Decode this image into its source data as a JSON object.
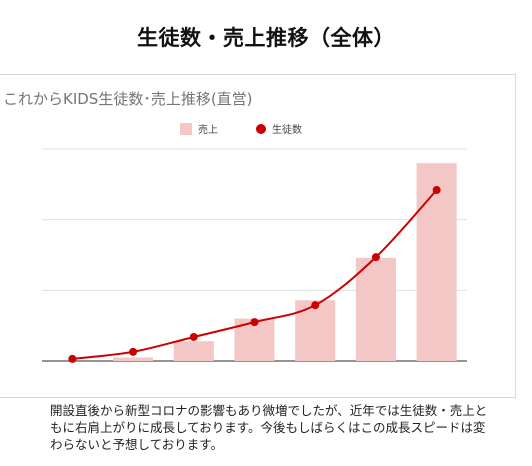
{
  "page": {
    "title": "生徒数・売上推移（全体）",
    "note": "開設直後から新型コロナの影響もあり微増でしたが、近年では生徒数・売上ともに右肩上がりに成長しております。今後もしばらくはこの成長スピードは変わらないと予想しております。"
  },
  "chart_data": {
    "type": "bar",
    "title": "これからKIDS生徒数･売上推移(直営)",
    "xlabel": "",
    "ylabel": "",
    "ylim": [
      0,
      3
    ],
    "grid": true,
    "legend_position": "top",
    "categories": [
      "",
      "",
      "",
      "",
      "",
      "",
      ""
    ],
    "series": [
      {
        "name": "売上",
        "type": "bar",
        "color": "#f4c7c7",
        "values": [
          0.0,
          0.05,
          0.28,
          0.6,
          0.86,
          1.46,
          2.8
        ]
      },
      {
        "name": "生徒数",
        "type": "line",
        "color": "#cc0000",
        "values": [
          0.03,
          0.13,
          0.34,
          0.55,
          0.79,
          1.47,
          2.42
        ]
      }
    ]
  }
}
